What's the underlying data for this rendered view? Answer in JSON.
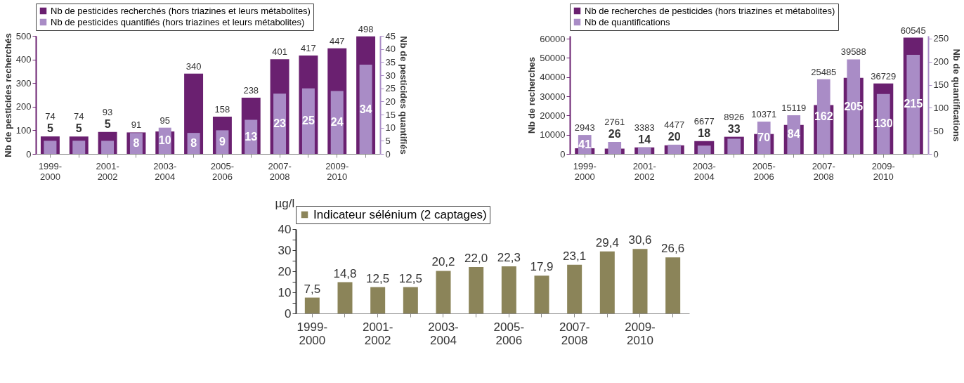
{
  "chart_data": [
    {
      "type": "bar",
      "ylabel": "Nb de pesticides recherchés",
      "y2label": "Nb de pesticides quantifiés",
      "categories": [
        "1999-2000",
        null,
        "2001-2002",
        null,
        "2003-2004",
        null,
        "2005-2006",
        null,
        "2007-2008",
        null,
        "2009-2010",
        null
      ],
      "ylim": [
        0,
        500
      ],
      "yticks": [
        0,
        100,
        200,
        300,
        400,
        500
      ],
      "y2lim": [
        0,
        45
      ],
      "y2ticks": [
        0,
        5,
        10,
        15,
        20,
        25,
        30,
        35,
        40,
        45
      ],
      "data_labels": true,
      "legend": "top",
      "series": [
        {
          "name": "Nb de pesticides recherchés (hors triazines et leurs métabolites)",
          "color": "#6a2070",
          "values": [
            74,
            74,
            93,
            91,
            95,
            340,
            158,
            238,
            401,
            417,
            447,
            498
          ]
        },
        {
          "name": "Nb de pesticides quantifiés (hors triazines et leurs métabolites)",
          "color": "#a98cc6",
          "axis": "y2",
          "values": [
            5,
            5,
            5,
            8,
            10,
            8,
            9,
            13,
            23,
            25,
            24,
            34
          ]
        }
      ]
    },
    {
      "type": "bar",
      "ylabel": "Nb de recherches",
      "y2label": "Nb de quantifications",
      "categories": [
        "1999-2000",
        null,
        "2001-2002",
        null,
        "2003-2004",
        null,
        "2005-2006",
        null,
        "2007-2008",
        null,
        "2009-2010",
        null
      ],
      "ylim": [
        0,
        61500
      ],
      "yticks": [
        0,
        10000,
        20000,
        30000,
        40000,
        50000,
        60000
      ],
      "y2lim": [
        0,
        256
      ],
      "y2ticks": [
        0,
        50,
        100,
        150,
        200,
        250
      ],
      "data_labels": true,
      "legend": "top",
      "series": [
        {
          "name": "Nb de recherches de pesticides (hors triazines et métabolites)",
          "color": "#6a2070",
          "values": [
            2943,
            2761,
            3383,
            4477,
            6677,
            8926,
            10371,
            15119,
            25485,
            39588,
            36729,
            60545
          ]
        },
        {
          "name": "Nb de quantifications",
          "color": "#a98cc6",
          "axis": "y2",
          "values": [
            41,
            26,
            14,
            20,
            18,
            33,
            70,
            84,
            162,
            205,
            130,
            215
          ]
        }
      ]
    },
    {
      "type": "bar",
      "ylabel": "µg/l",
      "categories": [
        "1999-2000",
        null,
        "2001-2002",
        null,
        "2003-2004",
        null,
        "2005-2006",
        null,
        "2007-2008",
        null,
        "2009-2010",
        null
      ],
      "ylim": [
        0,
        40
      ],
      "yticks": [
        0,
        {
          "value": 5,
          "label": null
        },
        10,
        {
          "value": 15,
          "label": null
        },
        20,
        {
          "value": 25,
          "label": null
        },
        30,
        {
          "value": 35,
          "label": null
        },
        40
      ],
      "legend": "top",
      "series": [
        {
          "name": "Indicateur sélénium (2 captages)",
          "color": "#8b8459",
          "values": [
            7.5,
            14.8,
            12.5,
            12.5,
            20.2,
            22.0,
            22.3,
            17.9,
            23.1,
            29.4,
            30.6,
            26.6
          ],
          "value_labels": [
            "7,5",
            "14,8",
            "12,5",
            "12,5",
            "20,2",
            "22,0",
            "22,3",
            "17,9",
            "23,1",
            "29,4",
            "30,6",
            "26,6"
          ]
        }
      ]
    }
  ]
}
